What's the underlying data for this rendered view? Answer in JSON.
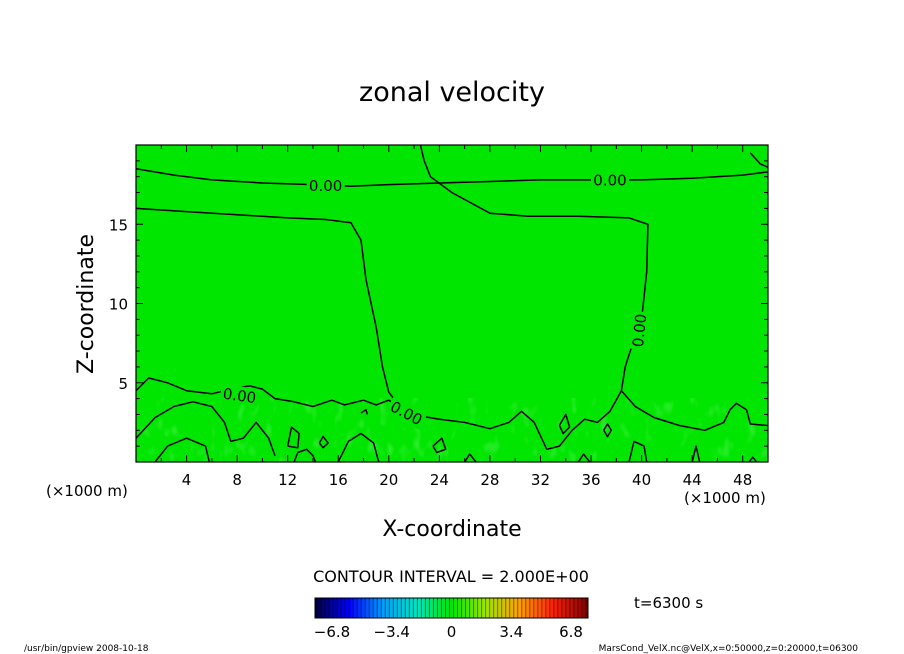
{
  "chart_data": {
    "type": "heatmap",
    "title": "zonal velocity",
    "xlabel": "X-coordinate",
    "ylabel": "Z-coordinate",
    "x_unit_left": "(×1000 m)",
    "x_unit_right": "(×1000 m)",
    "xlim": [
      0,
      50
    ],
    "ylim": [
      0,
      20
    ],
    "x_ticks": [
      4,
      8,
      12,
      16,
      20,
      24,
      28,
      32,
      36,
      40,
      44,
      48
    ],
    "y_ticks": [
      5,
      10,
      15
    ],
    "field_color": "#00e600",
    "grid": false,
    "contour_interval_text": "CONTOUR INTERVAL = 2.000E+00",
    "time_text": "t=6300 s",
    "colorbar": {
      "ticks": [
        -6.8,
        -3.4,
        0,
        3.4,
        6.8
      ],
      "tick_labels": [
        "−6.8",
        "−3.4",
        "0",
        "3.4",
        "6.8"
      ],
      "colors": [
        "#000040",
        "#0000ff",
        "#00a0ff",
        "#00e6c0",
        "#00e600",
        "#a0e600",
        "#ffa000",
        "#ff2000",
        "#800000"
      ]
    },
    "contours": [
      {
        "label": "0.00",
        "points": [
          [
            0,
            18.5
          ],
          [
            3,
            18.1
          ],
          [
            6,
            17.8
          ],
          [
            10,
            17.6
          ],
          [
            14,
            17.5
          ],
          [
            17,
            17.4
          ],
          [
            20,
            17.5
          ],
          [
            24,
            17.6
          ],
          [
            28,
            17.7
          ],
          [
            32,
            17.8
          ],
          [
            36,
            17.8
          ],
          [
            40,
            17.8
          ],
          [
            44,
            17.9
          ],
          [
            48,
            18.1
          ],
          [
            50,
            18.3
          ]
        ]
      },
      {
        "label": "0.00",
        "points": [
          [
            0,
            16.0
          ],
          [
            4,
            15.8
          ],
          [
            8,
            15.6
          ],
          [
            12,
            15.4
          ],
          [
            15,
            15.3
          ],
          [
            17,
            15.1
          ],
          [
            17.8,
            14.0
          ],
          [
            18.2,
            11.5
          ],
          [
            19.0,
            8.5
          ],
          [
            19.5,
            6.0
          ],
          [
            20.0,
            4.4
          ],
          [
            20.7,
            3.7
          ],
          [
            21.5,
            3.2
          ],
          [
            22.5,
            2.9
          ],
          [
            24,
            2.7
          ]
        ]
      },
      {
        "label": "0.00",
        "points": [
          [
            22.5,
            20
          ],
          [
            22.8,
            19
          ],
          [
            23.3,
            18.0
          ],
          [
            25,
            17.0
          ],
          [
            28,
            15.7
          ],
          [
            31,
            15.5
          ],
          [
            35,
            15.5
          ],
          [
            39,
            15.4
          ],
          [
            40.5,
            15.0
          ],
          [
            40.4,
            12.0
          ],
          [
            40.0,
            9.0
          ],
          [
            39.3,
            7.5
          ],
          [
            38.7,
            6.0
          ],
          [
            38.4,
            4.5
          ]
        ]
      },
      {
        "label": "0.00",
        "points": [
          [
            0,
            4.5
          ],
          [
            1.0,
            5.3
          ],
          [
            2.5,
            5.0
          ],
          [
            4.0,
            4.5
          ],
          [
            6.0,
            4.3
          ],
          [
            7.5,
            4.6
          ],
          [
            9.0,
            4.8
          ],
          [
            10.0,
            4.6
          ],
          [
            11.0,
            4.0
          ],
          [
            12.5,
            3.8
          ],
          [
            14.0,
            3.5
          ],
          [
            15.5,
            3.9
          ],
          [
            16.5,
            3.6
          ],
          [
            18.0,
            3.9
          ],
          [
            19.0,
            3.6
          ],
          [
            20.0,
            3.9
          ],
          [
            21.0,
            3.4
          ]
        ]
      },
      {
        "label": "",
        "points": [
          [
            0,
            1.5
          ],
          [
            1.5,
            2.8
          ],
          [
            3.0,
            3.5
          ],
          [
            4.5,
            3.8
          ],
          [
            6.0,
            3.5
          ],
          [
            7.0,
            2.5
          ],
          [
            7.5,
            1.3
          ],
          [
            8.5,
            1.5
          ],
          [
            9.5,
            2.5
          ],
          [
            10.5,
            1.5
          ],
          [
            11.0,
            0.4
          ]
        ]
      },
      {
        "label": "",
        "points": [
          [
            1.5,
            0
          ],
          [
            2.5,
            1.0
          ],
          [
            4.0,
            1.5
          ],
          [
            5.5,
            1.0
          ],
          [
            5.8,
            0
          ]
        ]
      },
      {
        "label": "",
        "points": [
          [
            24,
            2.7
          ],
          [
            26,
            2.5
          ],
          [
            28,
            2.1
          ],
          [
            29.5,
            2.5
          ],
          [
            30.5,
            3.2
          ],
          [
            31.5,
            2.5
          ],
          [
            32.5,
            0.8
          ],
          [
            33.5,
            1.0
          ],
          [
            34.5,
            2.0
          ],
          [
            35.5,
            2.7
          ],
          [
            36.5,
            2.5
          ],
          [
            37.5,
            3.2
          ],
          [
            38.4,
            4.5
          ]
        ]
      },
      {
        "label": "",
        "points": [
          [
            38.4,
            4.5
          ],
          [
            39.5,
            3.5
          ],
          [
            41.0,
            2.8
          ],
          [
            43.0,
            2.3
          ],
          [
            45.0,
            2.0
          ],
          [
            46.5,
            2.5
          ],
          [
            47.0,
            3.3
          ],
          [
            47.5,
            3.7
          ],
          [
            48.3,
            3.3
          ],
          [
            48.6,
            2.4
          ],
          [
            50,
            2.3
          ]
        ]
      },
      {
        "label": "",
        "points": [
          [
            39.0,
            0
          ],
          [
            39.4,
            1.3
          ],
          [
            40.2,
            1.0
          ],
          [
            40.4,
            0
          ]
        ]
      },
      {
        "label": "",
        "points": [
          [
            44.0,
            0
          ],
          [
            44.3,
            1.0
          ],
          [
            44.6,
            0
          ]
        ]
      },
      {
        "label": "",
        "points": [
          [
            12.0,
            1.0
          ],
          [
            12.3,
            2.2
          ],
          [
            12.9,
            1.8
          ],
          [
            12.8,
            0.9
          ],
          [
            12.0,
            1.0
          ]
        ]
      },
      {
        "label": "",
        "points": [
          [
            12.5,
            0
          ],
          [
            12.8,
            0.6
          ],
          [
            13.5,
            0.8
          ],
          [
            14.0,
            0.4
          ],
          [
            14.2,
            0
          ]
        ]
      },
      {
        "label": "",
        "points": [
          [
            14.5,
            1.2
          ],
          [
            14.8,
            0.9
          ],
          [
            15.2,
            1.2
          ],
          [
            14.8,
            1.6
          ],
          [
            14.5,
            1.2
          ]
        ]
      },
      {
        "label": "",
        "points": [
          [
            16.0,
            0
          ],
          [
            16.8,
            1.3
          ],
          [
            17.8,
            1.8
          ],
          [
            18.8,
            1.2
          ],
          [
            19.2,
            0
          ]
        ]
      },
      {
        "label": "",
        "points": [
          [
            23.5,
            1.0
          ],
          [
            24.2,
            1.5
          ],
          [
            24.5,
            0.8
          ],
          [
            23.8,
            0.6
          ],
          [
            23.5,
            1.0
          ]
        ]
      },
      {
        "label": "",
        "points": [
          [
            26.0,
            0
          ],
          [
            26.4,
            0.5
          ],
          [
            26.9,
            0
          ]
        ]
      },
      {
        "label": "",
        "points": [
          [
            33.5,
            2.3
          ],
          [
            34.0,
            3.0
          ],
          [
            34.3,
            2.2
          ],
          [
            33.8,
            1.8
          ],
          [
            33.5,
            2.3
          ]
        ]
      },
      {
        "label": "",
        "points": [
          [
            35.0,
            0
          ],
          [
            35.4,
            0.5
          ],
          [
            35.9,
            0
          ]
        ]
      },
      {
        "label": "",
        "points": [
          [
            37.0,
            2.0
          ],
          [
            37.3,
            2.4
          ],
          [
            37.6,
            2.0
          ],
          [
            37.3,
            1.6
          ],
          [
            37.0,
            2.0
          ]
        ]
      },
      {
        "label": "",
        "points": [
          [
            48.5,
            0
          ],
          [
            48.8,
            0.3
          ],
          [
            49.1,
            0
          ]
        ]
      },
      {
        "label": "",
        "points": [
          [
            48.6,
            19.5
          ],
          [
            49.4,
            18.8
          ],
          [
            50,
            18.6
          ]
        ]
      },
      {
        "label": "",
        "points": [
          [
            17.8,
            3.1
          ],
          [
            18.2,
            3.3
          ],
          [
            18.3,
            3.0
          ]
        ]
      }
    ],
    "contour_labels": [
      {
        "text": "0.00",
        "x": 15.0,
        "y": 17.45,
        "angle": 0
      },
      {
        "text": "0.00",
        "x": 37.5,
        "y": 17.8,
        "angle": 0
      },
      {
        "text": "0.00",
        "x": 39.8,
        "y": 8.3,
        "angle": -84
      },
      {
        "text": "0.00",
        "x": 8.2,
        "y": 4.2,
        "angle": 8
      },
      {
        "text": "0.00",
        "x": 21.4,
        "y": 3.1,
        "angle": 28
      }
    ]
  },
  "footer": {
    "left": "/usr/bin/gpview   2008-10-18",
    "right": "MarsCond_VelX.nc@VelX,x=0:50000,z=0:20000,t=06300"
  }
}
